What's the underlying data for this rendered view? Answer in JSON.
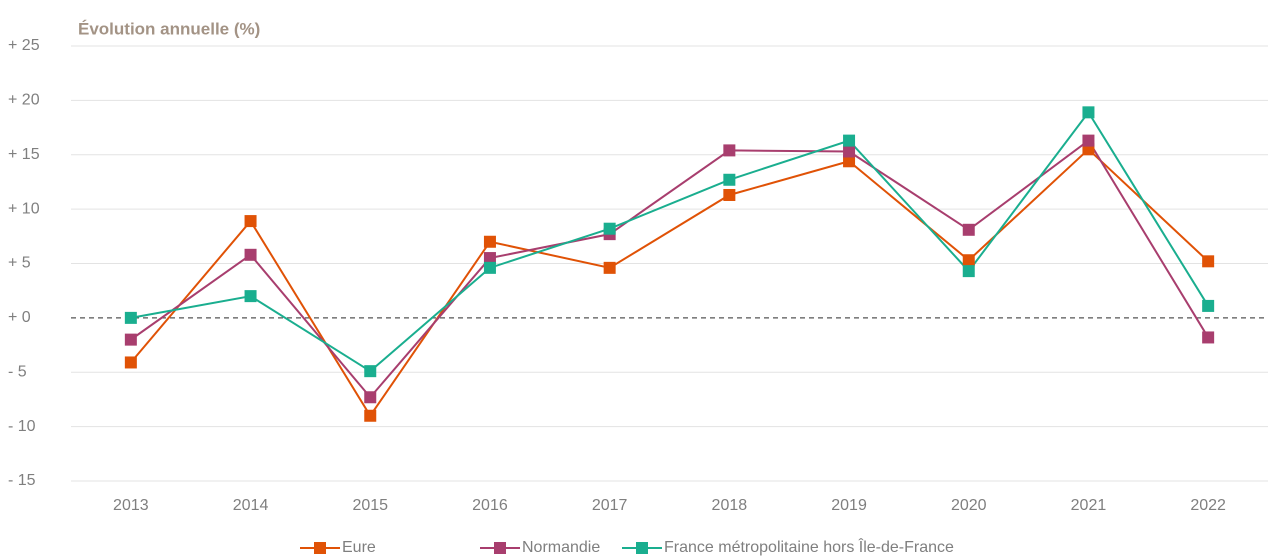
{
  "chart_data": {
    "type": "line",
    "title": "Évolution annuelle (%)",
    "categories": [
      "2013",
      "2014",
      "2015",
      "2016",
      "2017",
      "2018",
      "2019",
      "2020",
      "2021",
      "2022"
    ],
    "series": [
      {
        "name": "Eure",
        "color": "#e05206",
        "values": [
          -4.1,
          8.9,
          -9.0,
          7.0,
          4.6,
          11.3,
          14.4,
          5.3,
          15.5,
          5.2
        ]
      },
      {
        "name": "Normandie",
        "color": "#a83e6e",
        "values": [
          -2.0,
          5.8,
          -7.3,
          5.5,
          7.7,
          15.4,
          15.3,
          8.1,
          16.3,
          -1.8
        ]
      },
      {
        "name": "France métropolitaine hors Île-de-France",
        "color": "#1aae8f",
        "values": [
          0.0,
          2.0,
          -4.9,
          4.6,
          8.2,
          12.7,
          16.3,
          4.3,
          18.9,
          1.1
        ]
      }
    ],
    "ylim": [
      -15,
      25
    ],
    "yticks": [
      {
        "value": -15,
        "label": "- 15"
      },
      {
        "value": -10,
        "label": "- 10"
      },
      {
        "value": -5,
        "label": "- 5"
      },
      {
        "value": 0,
        "label": "+ 0"
      },
      {
        "value": 5,
        "label": "+ 5"
      },
      {
        "value": 10,
        "label": "+ 10"
      },
      {
        "value": 15,
        "label": "+ 15"
      },
      {
        "value": 20,
        "label": "+ 20"
      },
      {
        "value": 25,
        "label": "+ 25"
      }
    ],
    "grid": true,
    "legend": "bottom"
  }
}
